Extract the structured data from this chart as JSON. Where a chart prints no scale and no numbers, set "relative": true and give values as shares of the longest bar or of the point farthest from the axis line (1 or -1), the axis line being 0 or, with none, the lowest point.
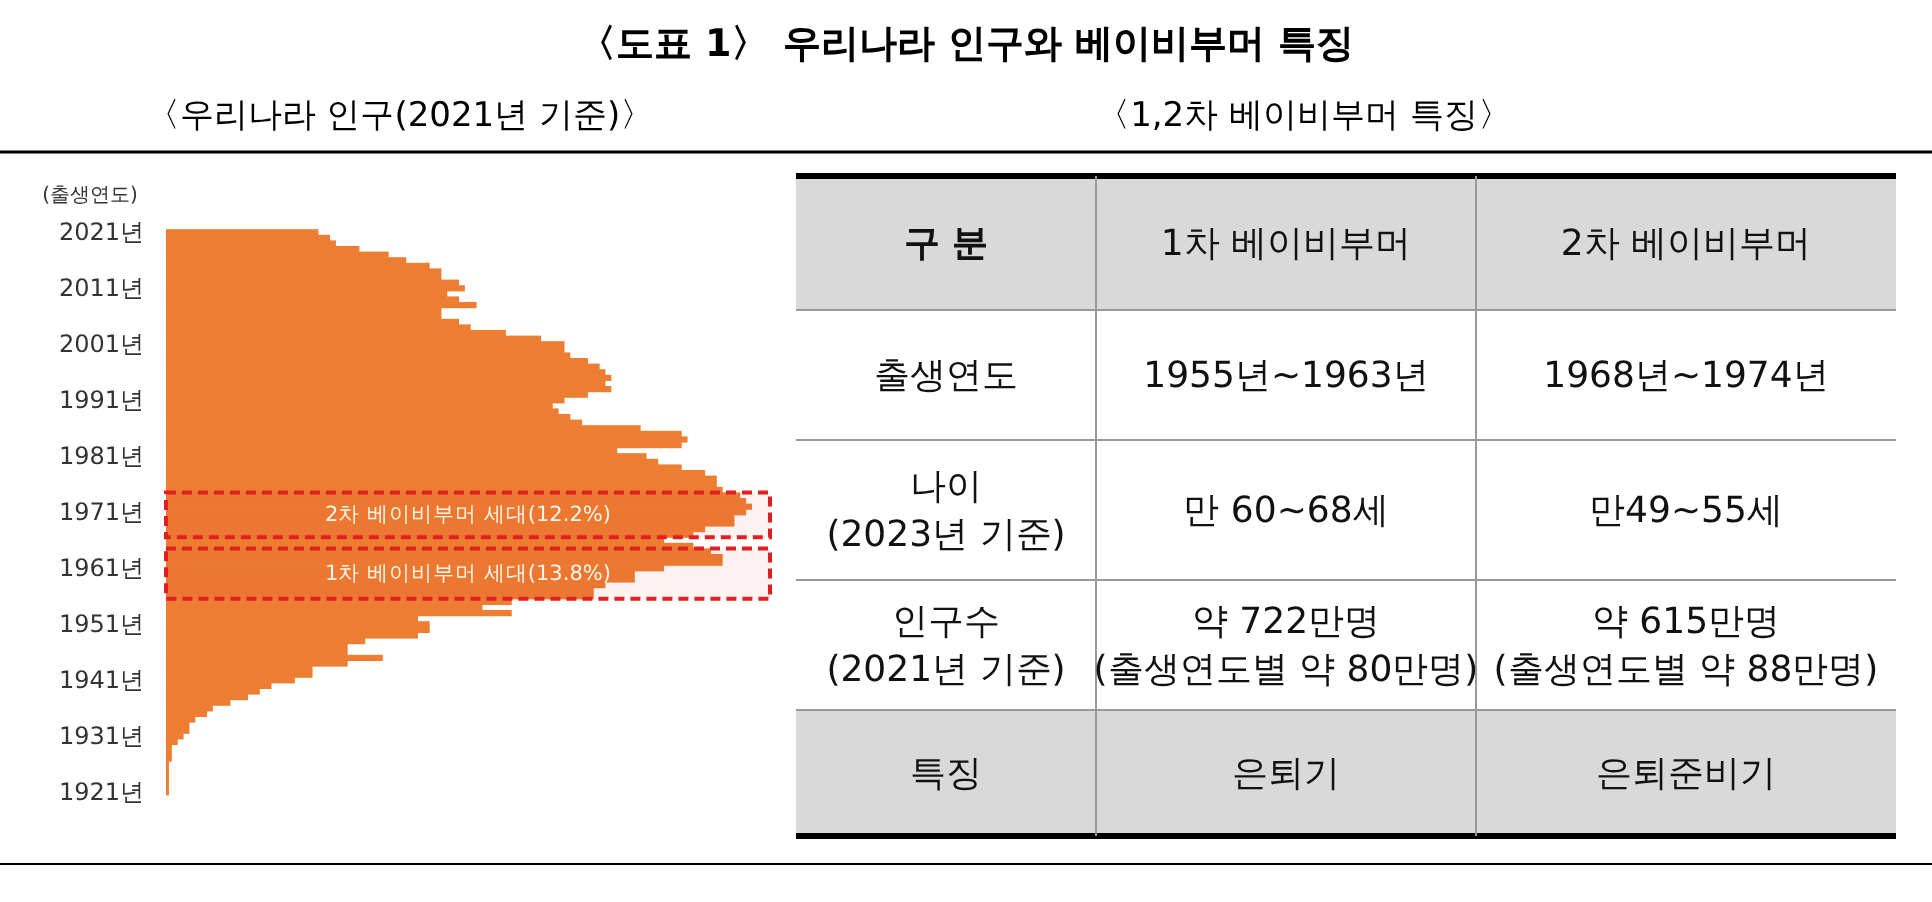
{
  "chart_data": [
    {
      "type": "bar",
      "orientation": "horizontal",
      "relative": true,
      "title": "〈도표 1〉 우리나라 인구와 베이비부머 특징",
      "subtitle": "〈우리나라 인구(2021년 기준)〉",
      "ylabel": "(출생연도)",
      "color": "#ed7d31",
      "x": [
        2021,
        2020,
        2019,
        2018,
        2017,
        2016,
        2015,
        2014,
        2013,
        2012,
        2011,
        2010,
        2009,
        2008,
        2007,
        2006,
        2005,
        2004,
        2003,
        2002,
        2001,
        2000,
        1999,
        1998,
        1997,
        1996,
        1995,
        1994,
        1993,
        1992,
        1991,
        1990,
        1989,
        1988,
        1987,
        1986,
        1985,
        1984,
        1983,
        1982,
        1981,
        1980,
        1979,
        1978,
        1977,
        1976,
        1975,
        1974,
        1973,
        1972,
        1971,
        1970,
        1969,
        1968,
        1967,
        1966,
        1965,
        1964,
        1963,
        1962,
        1961,
        1960,
        1959,
        1958,
        1957,
        1956,
        1955,
        1954,
        1953,
        1952,
        1951,
        1950,
        1949,
        1948,
        1947,
        1946,
        1945,
        1944,
        1943,
        1942,
        1941,
        1940,
        1939,
        1938,
        1937,
        1936,
        1935,
        1934,
        1933,
        1932,
        1931,
        1930,
        1929,
        1928,
        1927,
        1926,
        1925,
        1924,
        1923,
        1922,
        1921
      ],
      "values": [
        0.26,
        0.28,
        0.29,
        0.33,
        0.38,
        0.41,
        0.45,
        0.47,
        0.47,
        0.5,
        0.51,
        0.48,
        0.5,
        0.53,
        0.47,
        0.47,
        0.5,
        0.52,
        0.58,
        0.64,
        0.68,
        0.68,
        0.69,
        0.72,
        0.74,
        0.75,
        0.76,
        0.75,
        0.76,
        0.72,
        0.68,
        0.66,
        0.67,
        0.69,
        0.71,
        0.81,
        0.88,
        0.89,
        0.88,
        0.77,
        0.82,
        0.84,
        0.88,
        0.92,
        0.94,
        0.94,
        0.95,
        0.98,
        0.99,
        1,
        0.99,
        0.97,
        0.97,
        0.92,
        0.9,
        0.85,
        0.9,
        0.93,
        0.95,
        0.95,
        0.85,
        0.8,
        0.8,
        0.75,
        0.73,
        0.73,
        0.59,
        0.54,
        0.59,
        0.43,
        0.45,
        0.45,
        0.43,
        0.34,
        0.31,
        0.31,
        0.37,
        0.31,
        0.25,
        0.25,
        0.22,
        0.18,
        0.16,
        0.14,
        0.11,
        0.08,
        0.07,
        0.05,
        0.04,
        0.04,
        0.03,
        0.02,
        0.01,
        0.01,
        0.01,
        0.005,
        0.005,
        0.005,
        0.005,
        0.005,
        0.005
      ],
      "ylim": [
        1921,
        2021
      ],
      "yticks": [
        {
          "value": 2021,
          "label": "2021년"
        },
        {
          "value": 2011,
          "label": "2011년"
        },
        {
          "value": 2001,
          "label": "2001년"
        },
        {
          "value": 1991,
          "label": "1991년"
        },
        {
          "value": 1981,
          "label": "1981년"
        },
        {
          "value": 1971,
          "label": "1971년"
        },
        {
          "value": 1961,
          "label": "1961년"
        },
        {
          "value": 1951,
          "label": "1951년"
        },
        {
          "value": 1941,
          "label": "1941년"
        },
        {
          "value": 1931,
          "label": "1931년"
        },
        {
          "value": 1921,
          "label": "1921년"
        }
      ],
      "bands": [
        {
          "axis": "y",
          "from": 1967,
          "to": 1974,
          "label": "2차 베이비부머 세대(12.2%)",
          "color": "#e02020"
        },
        {
          "axis": "y",
          "from": 1956,
          "to": 1964,
          "label": "1차 베이비부머 세대(13.8%)",
          "color": "#e02020"
        }
      ]
    },
    {
      "type": "other",
      "title": "〈1,2차 베이비부머 특징〉",
      "annotations": [
        "구 분",
        "1차 베이비부머",
        "2차 베이비부머",
        "출생연도",
        "1955년~1963년",
        "1968년~1974년",
        "나이\n(2023년 기준)",
        "만 60~68세",
        "만49~55세",
        "인구수\n(2021년 기준)",
        "약 722만명\n(출생연도별 약 80만명)",
        "약 615만명\n(출생연도별 약 88만명)",
        "특징",
        "은퇴기",
        "은퇴준비기"
      ]
    }
  ]
}
